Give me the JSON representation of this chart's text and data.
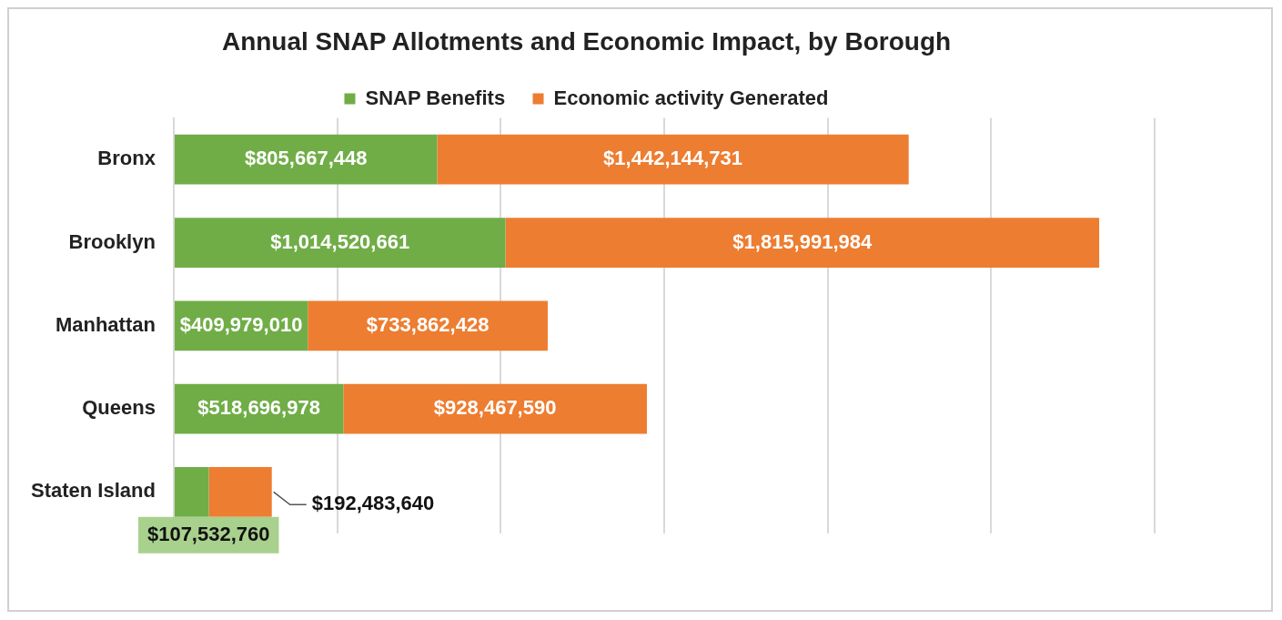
{
  "chart_data": {
    "type": "bar",
    "orientation": "horizontal",
    "stacked": true,
    "title": "Annual SNAP Allotments and Economic Impact, by Borough",
    "categories": [
      "Bronx",
      "Brooklyn",
      "Manhattan",
      "Queens",
      "Staten Island"
    ],
    "series": [
      {
        "name": "SNAP Benefits",
        "color": "#70ad47",
        "values": [
          805667448,
          1014520661,
          409979010,
          518696978,
          107532760
        ],
        "value_labels": [
          "$805,667,448",
          "$1,014,520,661",
          "$409,979,010",
          "$518,696,978",
          "$107,532,760"
        ]
      },
      {
        "name": "Economic activity Generated",
        "color": "#ed7d31",
        "values": [
          1442144731,
          1815991984,
          733862428,
          928467590,
          192483640
        ],
        "value_labels": [
          "$1,442,144,731",
          "$1,815,991,984",
          "$733,862,428",
          "$928,467,590",
          "$192,483,640"
        ]
      }
    ],
    "xlim": [
      0,
      3000000000
    ],
    "xticks": [
      {
        "value": 0,
        "label": null
      },
      {
        "value": 500000000,
        "label": null
      },
      {
        "value": 1000000000,
        "label": null
      },
      {
        "value": 1500000000,
        "label": null
      },
      {
        "value": 2000000000,
        "label": null
      },
      {
        "value": 2500000000,
        "label": null
      },
      {
        "value": 3000000000,
        "label": null
      }
    ],
    "grid": "x",
    "legend": "top",
    "tick_labels": "y"
  }
}
